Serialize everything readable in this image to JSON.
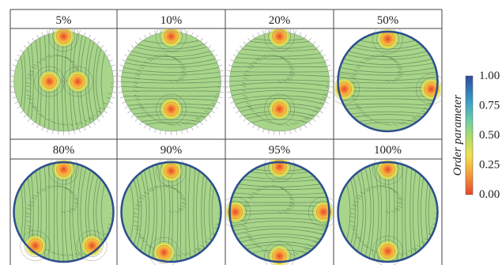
{
  "figure": {
    "panels": [
      {
        "label": "5%"
      },
      {
        "label": "10%"
      },
      {
        "label": "20%"
      },
      {
        "label": "50%"
      },
      {
        "label": "80%"
      },
      {
        "label": "90%"
      },
      {
        "label": "95%"
      },
      {
        "label": "100%"
      }
    ],
    "colorbar": {
      "title": "Order parameter",
      "ticks": [
        "1.00",
        "0.75",
        "0.50",
        "0.25",
        "0.00"
      ],
      "colors": [
        "#2e4a9e",
        "#3aa0c8",
        "#6ecfa4",
        "#a8dc6a",
        "#f2e14c",
        "#f6a13a",
        "#e8452a"
      ]
    },
    "disk_fill": "#a7d58a",
    "stream_color": "#5f7e55",
    "border_color": "#2d4f8c"
  }
}
